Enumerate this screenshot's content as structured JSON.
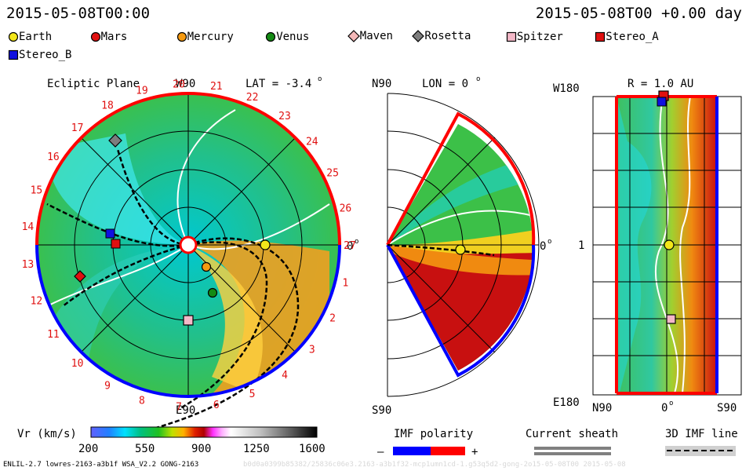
{
  "header": {
    "left_time": "2015-05-08T00:00",
    "right_time": "2015-05-08T00 +0.00 day"
  },
  "legend": [
    {
      "label": "Earth",
      "shape": "circle",
      "color": "#f2e61a"
    },
    {
      "label": "Mars",
      "shape": "circle",
      "color": "#e01010"
    },
    {
      "label": "Mercury",
      "shape": "circle",
      "color": "#f59a10"
    },
    {
      "label": "Venus",
      "shape": "circle",
      "color": "#138a13"
    },
    {
      "label": "Maven",
      "shape": "diamond",
      "color": "#f4b8b8"
    },
    {
      "label": "Rosetta",
      "shape": "diamond",
      "color": "#7d7d7d"
    },
    {
      "label": "Spitzer",
      "shape": "square",
      "color": "#f4b8c8"
    },
    {
      "label": "Stereo_A",
      "shape": "square",
      "color": "#e01010"
    },
    {
      "label": "Stereo_B",
      "shape": "square",
      "color": "#1010e0"
    }
  ],
  "ecliptic": {
    "title": "Ecliptic Plane",
    "lat": "LAT = -3.4",
    "lat_sup": "o",
    "top": "W90",
    "bottom": "E90",
    "right": "0",
    "right_sup": "o",
    "sector_labels": [
      "1",
      "2",
      "3",
      "4",
      "5",
      "6",
      "7",
      "8",
      "9",
      "10",
      "11",
      "12",
      "13",
      "14",
      "15",
      "16",
      "17",
      "18",
      "19",
      "20",
      "21",
      "22",
      "23",
      "24",
      "25",
      "26",
      "27"
    ]
  },
  "meridional": {
    "title": "LON = 0",
    "title_sup": "o",
    "top": "N90",
    "bottom": "S90",
    "right": "0",
    "right_sup": "o"
  },
  "shell": {
    "title": "R = 1.0 AU",
    "top": "W180",
    "bottom": "E180",
    "mid": "1",
    "x_left": "N90",
    "x_mid": "0",
    "x_mid_sup": "o",
    "x_right": "S90"
  },
  "colorbar": {
    "label": "Vr (km/s)",
    "ticks": [
      "200",
      "550",
      "900",
      "1250",
      "1600"
    ]
  },
  "imf": {
    "label": "IMF polarity",
    "minus": "–",
    "plus": "+",
    "neg_color": "#0000ff",
    "pos_color": "#ff0000"
  },
  "sheath": {
    "label": "Current sheath"
  },
  "imf3d": {
    "label": "3D IMF line"
  },
  "footer": {
    "left": "ENLIL-2.7 lowres-2163-a3b1f WSA_V2.2 GONG-2163",
    "right": "b0d0a0399b85382/25836c06e3.2163-a3b1f32-mcp1umn1cd-1.g53q5d2-gong-2o15-05-08T00   2015-05-08"
  }
}
